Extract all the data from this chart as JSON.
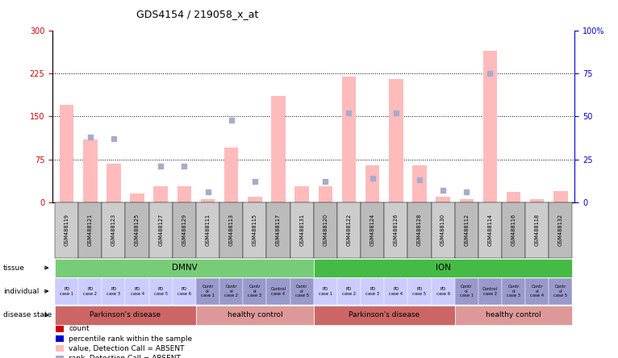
{
  "title": "GDS4154 / 219058_x_at",
  "samples": [
    "GSM488119",
    "GSM488121",
    "GSM488123",
    "GSM488125",
    "GSM488127",
    "GSM488129",
    "GSM488111",
    "GSM488113",
    "GSM488115",
    "GSM488117",
    "GSM488131",
    "GSM488120",
    "GSM488122",
    "GSM488124",
    "GSM488126",
    "GSM488128",
    "GSM488130",
    "GSM488112",
    "GSM488114",
    "GSM488116",
    "GSM488118",
    "GSM488132"
  ],
  "bar_values": [
    170,
    110,
    68,
    15,
    28,
    28,
    5,
    95,
    10,
    185,
    28,
    28,
    220,
    65,
    215,
    65,
    10,
    5,
    265,
    18,
    5,
    20
  ],
  "rank_values": [
    null,
    38,
    37,
    null,
    21,
    21,
    6,
    48,
    12,
    null,
    null,
    12,
    52,
    14,
    52,
    13,
    7,
    6,
    75,
    null,
    null,
    null
  ],
  "tissue_groups": [
    {
      "label": "DMNV",
      "start": 0,
      "end": 10,
      "color": "#77cc77"
    },
    {
      "label": "ION",
      "start": 11,
      "end": 21,
      "color": "#44bb44"
    }
  ],
  "individual_labels": [
    "PD\ncase 1",
    "PD\ncase 2",
    "PD\ncase 3",
    "PD\ncase 4",
    "PD\ncase 5",
    "PD\ncase 6",
    "Contr\nol\ncase 1",
    "Contr\nol\ncase 2",
    "Contr\nol\ncase 3",
    "Control\ncase 4",
    "Contr\nol\ncase 5",
    "PD\ncase 1",
    "PD\ncase 2",
    "PD\ncase 3",
    "PD\ncase 4",
    "PD\ncase 5",
    "PD\ncase 6",
    "Contr\nol\ncase 1",
    "Control\ncase 2",
    "Contr\nol\ncase 3",
    "Contr\nol\ncase 4",
    "Contr\nol\ncase 5"
  ],
  "individual_colors": [
    "#ccccff",
    "#ccccff",
    "#ccccff",
    "#ccccff",
    "#ccccff",
    "#ccccff",
    "#9999cc",
    "#9999cc",
    "#9999cc",
    "#9999cc",
    "#9999cc",
    "#ccccff",
    "#ccccff",
    "#ccccff",
    "#ccccff",
    "#ccccff",
    "#ccccff",
    "#9999cc",
    "#9999cc",
    "#9999cc",
    "#9999cc",
    "#9999cc"
  ],
  "disease_groups": [
    {
      "label": "Parkinson's disease",
      "start": 0,
      "end": 5,
      "color": "#cc6666"
    },
    {
      "label": "healthy control",
      "start": 6,
      "end": 10,
      "color": "#dd9999"
    },
    {
      "label": "Parkinson's disease",
      "start": 11,
      "end": 16,
      "color": "#cc6666"
    },
    {
      "label": "healthy control",
      "start": 17,
      "end": 21,
      "color": "#dd9999"
    }
  ],
  "ylim_left": [
    0,
    300
  ],
  "ylim_right": [
    0,
    100
  ],
  "yticks_left": [
    0,
    75,
    150,
    225,
    300
  ],
  "yticks_right": [
    0,
    25,
    50,
    75,
    100
  ],
  "bar_color_absent": "#ffbbbb",
  "rank_color_absent": "#aaaacc",
  "grid_lines": [
    75,
    150,
    225
  ],
  "left_axis_color": "#cc0000",
  "right_axis_color": "#0000cc",
  "bg_color": "#ffffff",
  "legend_items": [
    {
      "color": "#cc0000",
      "label": "count"
    },
    {
      "color": "#0000cc",
      "label": "percentile rank within the sample"
    },
    {
      "color": "#ffbbbb",
      "label": "value, Detection Call = ABSENT"
    },
    {
      "color": "#aaaacc",
      "label": "rank, Detection Call = ABSENT"
    }
  ],
  "xtick_colors": [
    "#cccccc",
    "#bbbbbb"
  ]
}
